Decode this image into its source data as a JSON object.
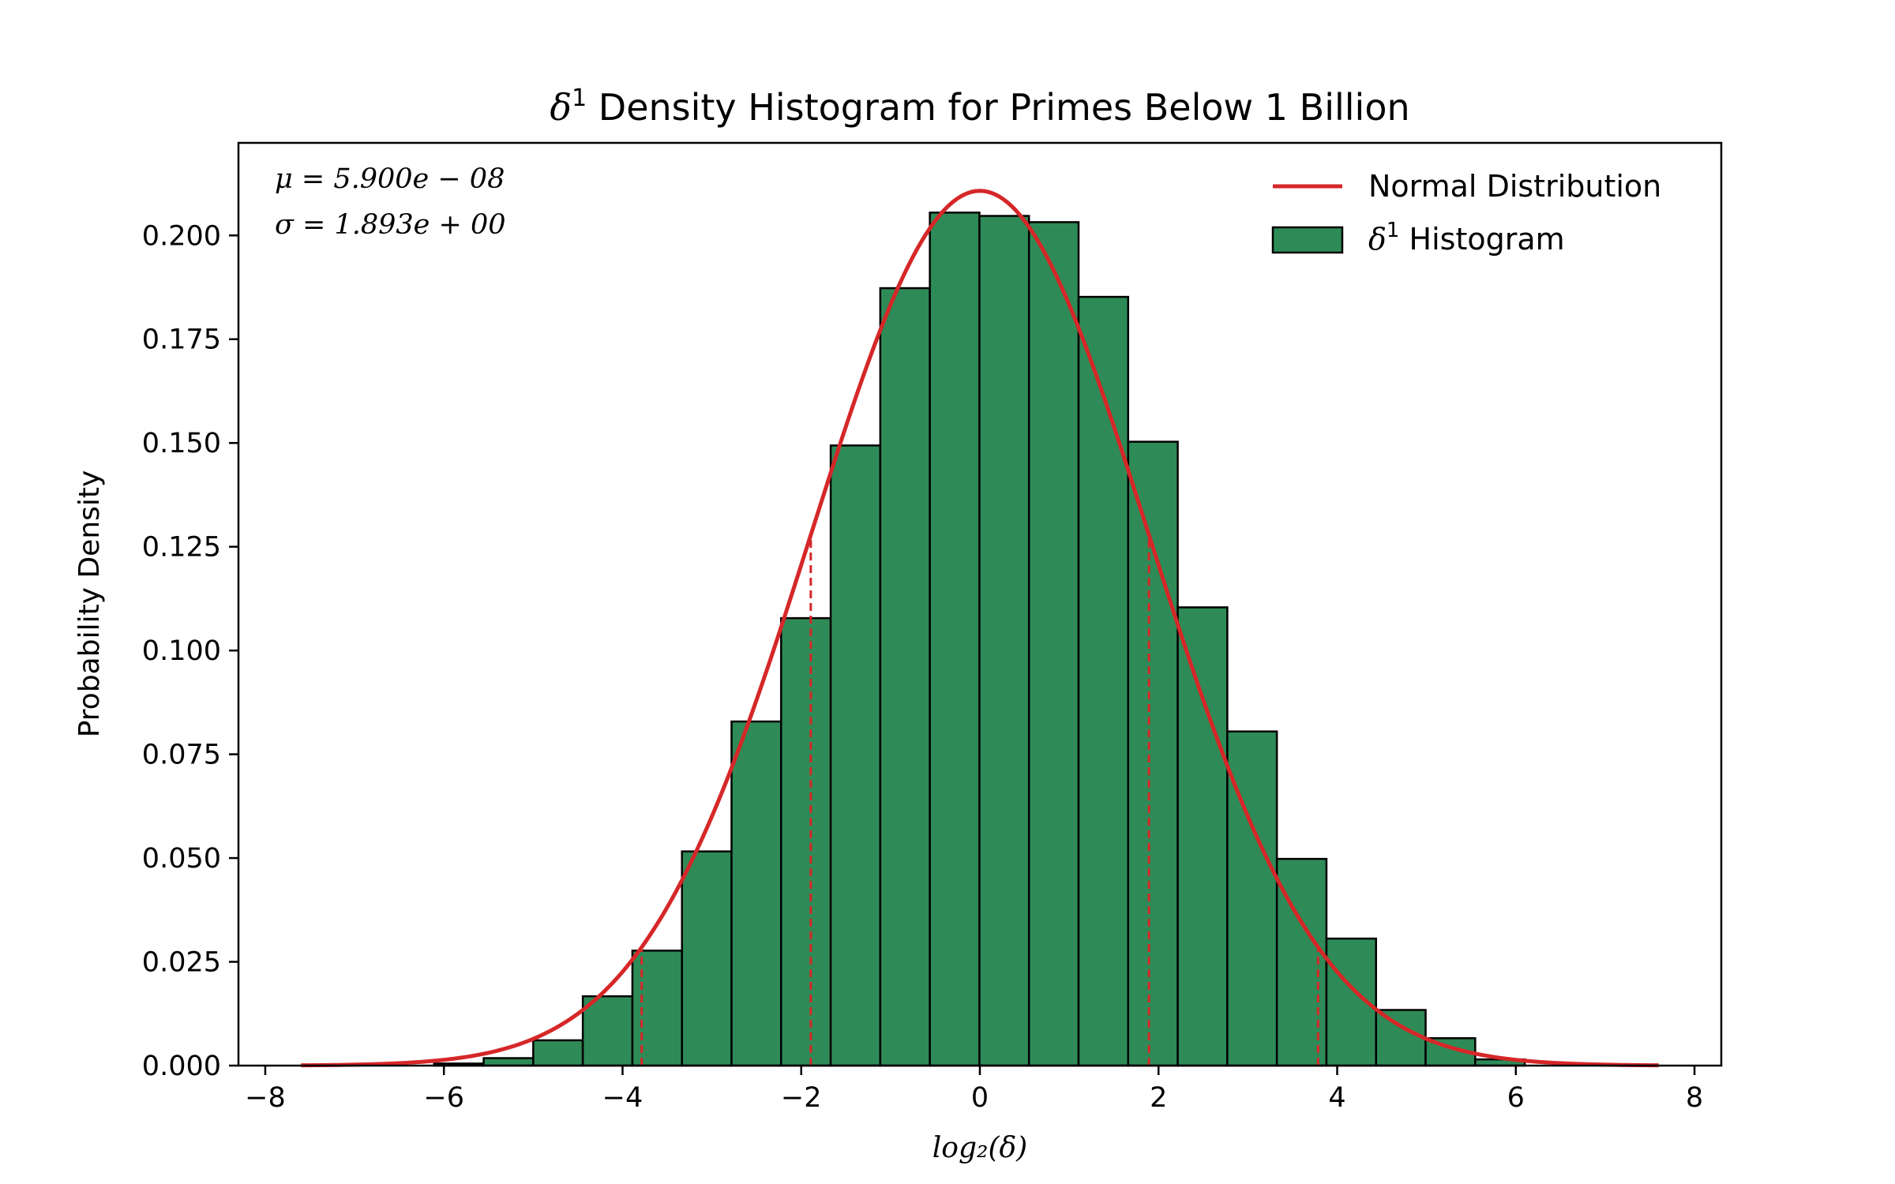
{
  "chart_data": {
    "type": "bar",
    "title": "δ¹ Density Histogram for Primes Below 1 Billion",
    "title_parts": {
      "symbol": "δ",
      "sup": "1",
      "rest": " Density Histogram for Primes Below 1 Billion"
    },
    "xlabel": "log₂(δ)",
    "ylabel": "Probability Density",
    "xlim": [
      -8.3,
      8.3
    ],
    "ylim": [
      0,
      0.2223
    ],
    "xticks": [
      -8,
      -6,
      -4,
      -2,
      0,
      2,
      4,
      6,
      8
    ],
    "xtick_labels": [
      "−8",
      "−6",
      "−4",
      "−2",
      "0",
      "2",
      "4",
      "6",
      "8"
    ],
    "yticks": [
      0,
      0.025,
      0.05,
      0.075,
      0.1,
      0.125,
      0.15,
      0.175,
      0.2
    ],
    "ytick_labels": [
      "0.000",
      "0.025",
      "0.050",
      "0.075",
      "0.100",
      "0.125",
      "0.150",
      "0.175",
      "0.200"
    ],
    "grid": false,
    "legend_placement": "upper right",
    "stats": {
      "mu": "μ = 5.900e − 08",
      "sigma": "σ = 1.893e + 00"
    },
    "histogram": {
      "name": "δ¹ Histogram",
      "legend_symbol": "δ",
      "legend_sup": "1",
      "legend_rest": " Histogram",
      "color": "#2e8b57",
      "edge_color": "#000000",
      "bin_edges": [
        -6.11,
        -5.555,
        -5.0,
        -4.445,
        -3.89,
        -3.335,
        -2.78,
        -2.225,
        -1.67,
        -1.115,
        -0.56,
        -0.005,
        0.55,
        1.105,
        1.66,
        2.215,
        2.77,
        3.325,
        3.88,
        4.435,
        4.99,
        5.545,
        6.1
      ],
      "values": [
        0.0005,
        0.0018,
        0.0061,
        0.0167,
        0.0277,
        0.0516,
        0.0829,
        0.1078,
        0.1494,
        0.1873,
        0.2055,
        0.2047,
        0.2032,
        0.1852,
        0.1503,
        0.1104,
        0.0805,
        0.0498,
        0.0306,
        0.0134,
        0.0066,
        0.0015
      ]
    },
    "normal_curve": {
      "name": "Normal Distribution",
      "color": "#d62728",
      "mu": 0.0,
      "sigma": 1.893,
      "x_range": [
        -7.6,
        7.6
      ]
    },
    "sigma_lines": {
      "x": [
        -3.786,
        -1.893,
        1.893,
        3.786
      ],
      "color": "#d62728",
      "style": "dashed"
    }
  }
}
